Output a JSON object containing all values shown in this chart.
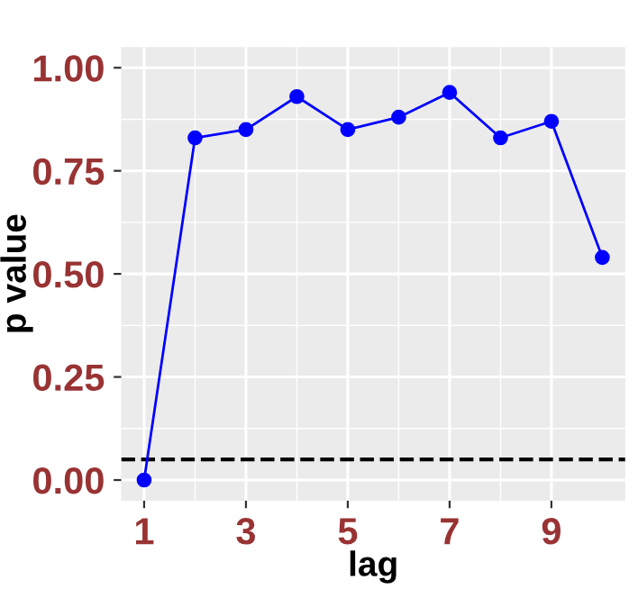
{
  "chart_data": {
    "type": "line",
    "xlabel": "lag",
    "ylabel": "p value",
    "x": [
      1,
      2,
      3,
      4,
      5,
      6,
      7,
      8,
      9,
      10
    ],
    "series": [
      {
        "color": "#0000ff",
        "values": [
          0.0,
          0.83,
          0.85,
          0.93,
          0.85,
          0.88,
          0.94,
          0.83,
          0.87,
          0.54
        ]
      }
    ],
    "marker": "circle",
    "line_style": "solid",
    "xlim": [
      0.55,
      10.45
    ],
    "xticks": [
      1,
      3,
      5,
      7,
      9
    ],
    "ylim": [
      -0.05,
      1.05
    ],
    "yticks": [
      {
        "value": 0,
        "label": "0.00"
      },
      {
        "value": 0.25,
        "label": "0.25"
      },
      {
        "value": 0.5,
        "label": "0.50"
      },
      {
        "value": 0.75,
        "label": "0.75"
      },
      {
        "value": 1,
        "label": "1.00"
      }
    ],
    "ref_lines": [
      {
        "axis": "y",
        "value": 0.05,
        "color": "#000000",
        "line_style": "dashed"
      }
    ],
    "grid": true
  }
}
